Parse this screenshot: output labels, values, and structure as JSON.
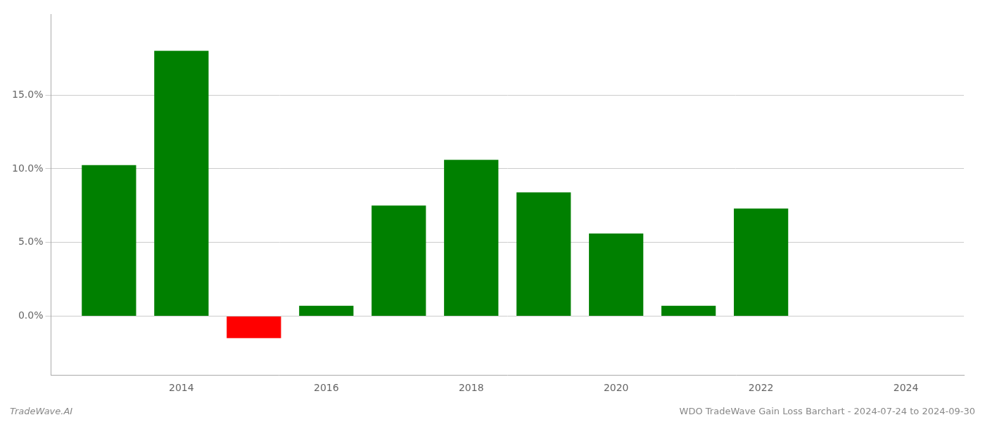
{
  "chart_data": {
    "type": "bar",
    "x": [
      2013,
      2014,
      2015,
      2016,
      2017,
      2018,
      2019,
      2020,
      2021,
      2022,
      2023
    ],
    "values": [
      0.1025,
      0.18,
      -0.015,
      0.007,
      0.075,
      0.106,
      0.084,
      0.056,
      0.007,
      0.073,
      0.0
    ],
    "colors": [
      "#008000",
      "#008000",
      "#ff0000",
      "#008000",
      "#008000",
      "#008000",
      "#008000",
      "#008000",
      "#008000",
      "#008000",
      "#008000"
    ],
    "xlim": [
      2012.2,
      2024.8
    ],
    "xticks": [
      2014,
      2016,
      2018,
      2020,
      2022,
      2024
    ],
    "ylim": [
      -0.04,
      0.205
    ],
    "yticks": [
      {
        "value": 0.0,
        "label": "0.0%"
      },
      {
        "value": 0.05,
        "label": "5.0%"
      },
      {
        "value": 0.1,
        "label": "10.0%"
      },
      {
        "value": 0.15,
        "label": "15.0%"
      }
    ],
    "grid": "y",
    "annotations": [
      "TradeWave.AI",
      "WDO TradeWave Gain Loss Barchart - 2024-07-24 to 2024-09-30"
    ]
  }
}
